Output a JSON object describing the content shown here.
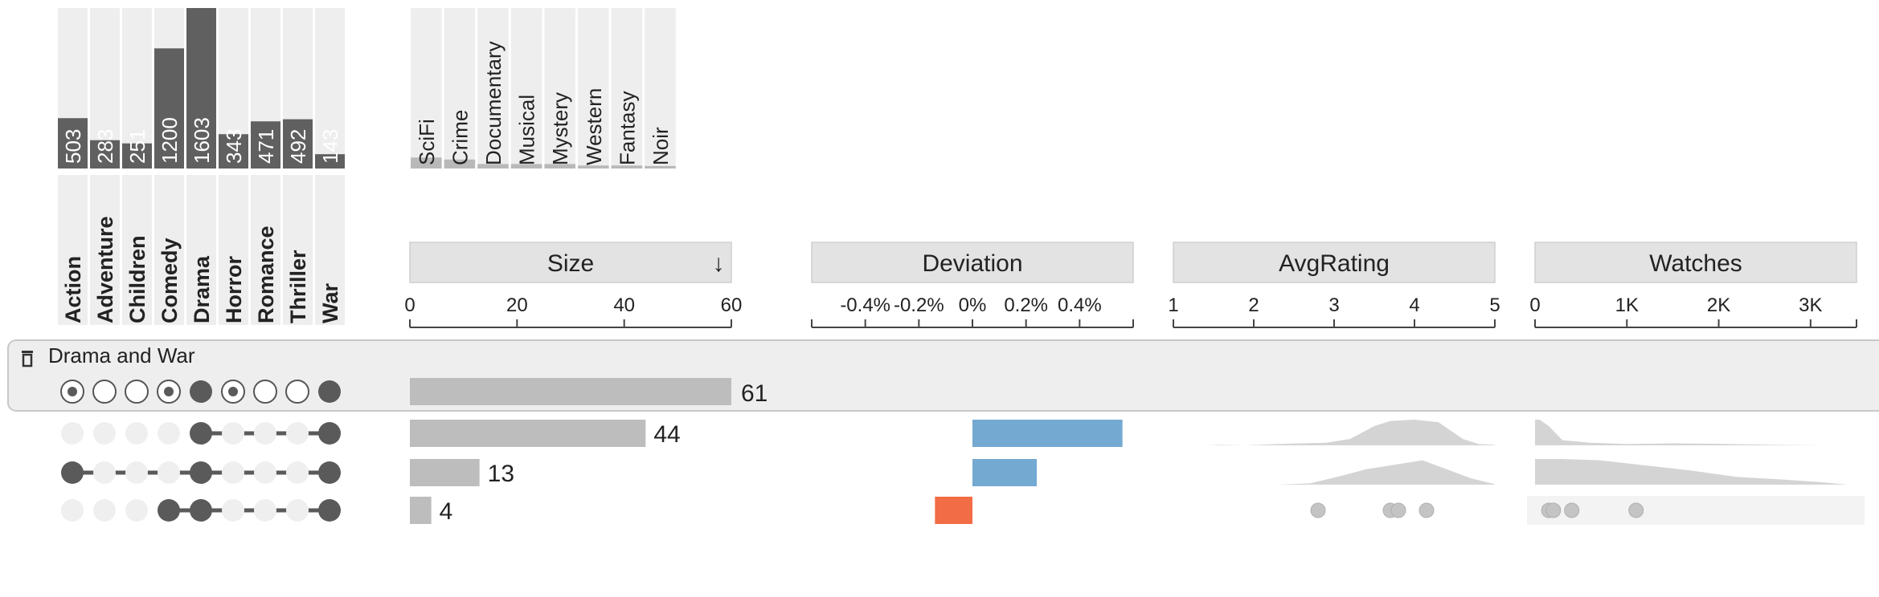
{
  "chart_data": {
    "type": "upset",
    "sets": [
      {
        "name": "Action",
        "size": 503
      },
      {
        "name": "Adventure",
        "size": 283
      },
      {
        "name": "Children",
        "size": 251
      },
      {
        "name": "Comedy",
        "size": 1200
      },
      {
        "name": "Drama",
        "size": 1603
      },
      {
        "name": "Horror",
        "size": 343
      },
      {
        "name": "Romance",
        "size": 471
      },
      {
        "name": "Thriller",
        "size": 492
      },
      {
        "name": "War",
        "size": 143
      }
    ],
    "hidden_sets": [
      {
        "name": "SciFi",
        "size": 110
      },
      {
        "name": "Crime",
        "size": 90
      },
      {
        "name": "Documentary",
        "size": 45
      },
      {
        "name": "Musical",
        "size": 45
      },
      {
        "name": "Mystery",
        "size": 45
      },
      {
        "name": "Western",
        "size": 30
      },
      {
        "name": "Fantasy",
        "size": 30
      },
      {
        "name": "Noir",
        "size": 25
      }
    ],
    "hidden_sets_max": 1603,
    "group": {
      "label": "Drama and War",
      "size": 61,
      "states": [
        "maybe",
        "no",
        "no",
        "maybe",
        "yes",
        "maybe",
        "no",
        "no",
        "yes"
      ]
    },
    "rows": [
      {
        "size": 44,
        "deviation": 0.56,
        "members": [
          "Drama",
          "War"
        ],
        "rating_density": [
          [
            1.4,
            0.0
          ],
          [
            1.6,
            0.02
          ],
          [
            1.9,
            0.0
          ],
          [
            2.3,
            0.05
          ],
          [
            2.6,
            0.08
          ],
          [
            2.9,
            0.1
          ],
          [
            3.2,
            0.25
          ],
          [
            3.5,
            0.75
          ],
          [
            3.7,
            0.95
          ],
          [
            4.0,
            1.0
          ],
          [
            4.3,
            0.9
          ],
          [
            4.6,
            0.25
          ],
          [
            4.8,
            0.05
          ],
          [
            5.0,
            0.02
          ]
        ],
        "watch_density": [
          [
            0,
            1.0
          ],
          [
            50,
            1.0
          ],
          [
            150,
            0.75
          ],
          [
            300,
            0.2
          ],
          [
            600,
            0.1
          ],
          [
            1000,
            0.05
          ],
          [
            1500,
            0.08
          ],
          [
            2000,
            0.06
          ],
          [
            2600,
            0.02
          ],
          [
            3100,
            0.0
          ]
        ]
      },
      {
        "size": 13,
        "deviation": 0.24,
        "members": [
          "Action",
          "Drama",
          "War"
        ],
        "rating_density": [
          [
            2.3,
            0.0
          ],
          [
            2.7,
            0.05
          ],
          [
            3.1,
            0.35
          ],
          [
            3.4,
            0.6
          ],
          [
            3.7,
            0.75
          ],
          [
            4.1,
            0.95
          ],
          [
            4.4,
            0.6
          ],
          [
            4.7,
            0.25
          ],
          [
            5.0,
            0.02
          ]
        ],
        "watch_density": [
          [
            0,
            1.0
          ],
          [
            300,
            1.0
          ],
          [
            700,
            0.95
          ],
          [
            1200,
            0.75
          ],
          [
            1700,
            0.55
          ],
          [
            2200,
            0.3
          ],
          [
            2700,
            0.2
          ],
          [
            3100,
            0.1
          ],
          [
            3400,
            0.0
          ]
        ]
      },
      {
        "size": 4,
        "deviation": -0.14,
        "members": [
          "Comedy",
          "Drama",
          "War"
        ],
        "ratings": [
          2.8,
          3.7,
          3.8,
          4.15
        ],
        "watches": [
          150,
          200,
          400,
          1100
        ]
      }
    ],
    "columns": [
      {
        "title": "Size",
        "sorted": true,
        "sort_icon": "↓",
        "range": [
          0,
          60
        ],
        "ticks": [
          "0",
          "20",
          "40",
          "60"
        ]
      },
      {
        "title": "Deviation",
        "range": [
          -0.6,
          0.6
        ],
        "ticks": [
          "-0.4%",
          "-0.2%",
          "0%",
          "0.2%",
          "0.4%"
        ]
      },
      {
        "title": "AvgRating",
        "range": [
          1,
          5
        ],
        "ticks": [
          "1",
          "2",
          "3",
          "4",
          "5"
        ]
      },
      {
        "title": "Watches",
        "range": [
          0,
          3500
        ],
        "ticks": [
          "0",
          "1K",
          "2K",
          "3K"
        ]
      }
    ],
    "colors": {
      "set_bar": "#606060",
      "hidden_bar": "#b9b9b9",
      "size_bar": "#bdbdbd",
      "positive": "#74a9d2",
      "negative": "#f26c45",
      "density": "#d4d4d4",
      "dot": "#5a5a5a",
      "empty_dot": "#efefef",
      "header_bg": "#e3e3e3",
      "group_bg": "#eeeeee"
    },
    "icons": {
      "delete": "trash-icon"
    }
  }
}
